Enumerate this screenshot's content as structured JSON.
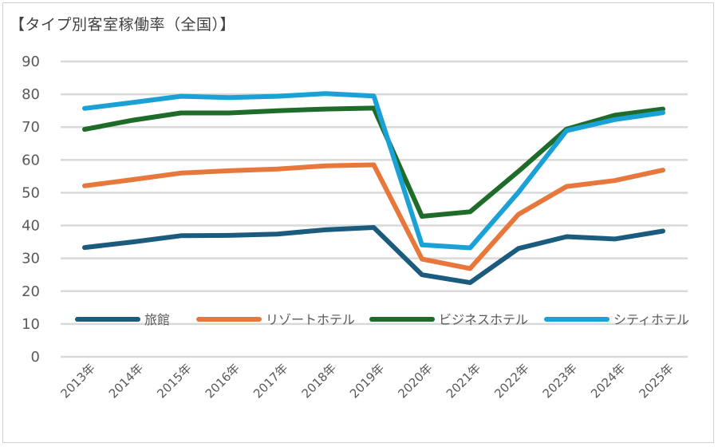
{
  "chart_data": {
    "type": "line",
    "title": "【タイプ別客室稼働率（全国）】",
    "categories": [
      "2013年",
      "2014年",
      "2015年",
      "2016年",
      "2017年",
      "2018年",
      "2019年",
      "2020年",
      "2021年",
      "2022年",
      "2023年",
      "2024年",
      "2025年"
    ],
    "ylim": [
      0,
      90
    ],
    "yticks": [
      0,
      10,
      20,
      30,
      40,
      50,
      60,
      70,
      80,
      90
    ],
    "grid": true,
    "legend_position": "bottom-inside",
    "series": [
      {
        "name": "旅館",
        "color": "#1b5b7e",
        "values": [
          33.3,
          35.0,
          36.9,
          37.0,
          37.4,
          38.7,
          39.4,
          25.0,
          22.6,
          33.0,
          36.6,
          35.9,
          38.3
        ]
      },
      {
        "name": "リゾートホテル",
        "color": "#e8773c",
        "values": [
          52.1,
          54.0,
          56.0,
          56.7,
          57.2,
          58.2,
          58.5,
          29.8,
          26.9,
          43.4,
          51.9,
          53.7,
          56.9
        ]
      },
      {
        "name": "ビジネスホテル",
        "color": "#1e6b2a",
        "values": [
          69.3,
          72.1,
          74.3,
          74.3,
          75.0,
          75.5,
          75.8,
          42.8,
          44.2,
          56.5,
          69.4,
          73.6,
          75.5
        ]
      },
      {
        "name": "シティホテル",
        "color": "#1aa1d6",
        "values": [
          75.7,
          77.5,
          79.4,
          79.0,
          79.4,
          80.2,
          79.5,
          34.1,
          33.2,
          50.1,
          68.9,
          72.3,
          74.4
        ]
      }
    ]
  }
}
